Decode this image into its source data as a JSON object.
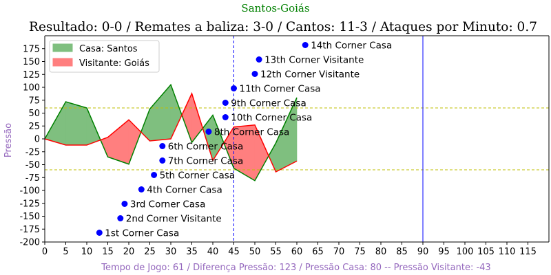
{
  "chart_data": {
    "type": "area",
    "title": "Santos-Goiás",
    "subtitle": "Resultado: 0-0 / Remates a baliza: 3-0 / Cantos: 11-3 / Ataques por Minuto: 0.7",
    "xlabel": "Tempo de Jogo: 61 / Diferença Pressão: 123 / Pressão Casa: 80 -- Pressão Visitante: -43",
    "ylabel": "Pressão",
    "xlim": [
      0,
      120
    ],
    "ylim": [
      -200,
      200
    ],
    "x_ticks": [
      0,
      5,
      10,
      15,
      20,
      25,
      30,
      35,
      40,
      45,
      50,
      55,
      60,
      65,
      70,
      75,
      80,
      85,
      90,
      95,
      100,
      105,
      110,
      115
    ],
    "y_ticks": [
      -200,
      -175,
      -150,
      -125,
      -100,
      -75,
      -50,
      -25,
      0,
      25,
      50,
      75,
      100,
      125,
      150,
      175
    ],
    "legend": {
      "position": "top-left",
      "entries": [
        "Casa: Santos",
        "Visitante: Goiás"
      ]
    },
    "series": [
      {
        "name": "Casa: Santos",
        "color": "#008000",
        "fill": "#7fbf7f",
        "x": [
          0,
          5,
          10,
          15,
          20,
          25,
          30,
          35,
          40,
          45,
          50,
          55,
          60
        ],
        "values": [
          0,
          72,
          60,
          -35,
          -49,
          58,
          105,
          -7,
          46,
          -57,
          -81,
          -8,
          80
        ]
      },
      {
        "name": "Visitante: Goiás",
        "color": "#ff0000",
        "fill": "#ff7f7f",
        "x": [
          0,
          5,
          10,
          15,
          20,
          25,
          30,
          35,
          40,
          45,
          50,
          55,
          60
        ],
        "values": [
          0,
          -12,
          -12,
          3,
          37,
          -4,
          0,
          88,
          -42,
          23,
          27,
          -64,
          -43
        ]
      }
    ],
    "reference_lines": {
      "horizontal": [
        60,
        -60
      ],
      "horizontal_color": "#bfbf00",
      "vertical": [
        45,
        90
      ],
      "vertical_color": "#0000ff"
    },
    "events": [
      {
        "x": 13,
        "y": -182,
        "label": "1st Corner Casa"
      },
      {
        "x": 18,
        "y": -154,
        "label": "2nd Corner Visitante"
      },
      {
        "x": 19,
        "y": -126,
        "label": "3rd Corner Casa"
      },
      {
        "x": 23,
        "y": -98,
        "label": "4th Corner Casa"
      },
      {
        "x": 26,
        "y": -70,
        "label": "5th Corner Casa"
      },
      {
        "x": 28,
        "y": -14,
        "label": "6th Corner Casa"
      },
      {
        "x": 28,
        "y": -42,
        "label": "7th Corner Casa"
      },
      {
        "x": 39,
        "y": 14,
        "label": "8th Corner Casa"
      },
      {
        "x": 43,
        "y": 70,
        "label": "9th Corner Casa"
      },
      {
        "x": 43,
        "y": 42,
        "label": "10th Corner Casa"
      },
      {
        "x": 45,
        "y": 98,
        "label": "11th Corner Casa"
      },
      {
        "x": 50,
        "y": 126,
        "label": "12th Corner Visitante"
      },
      {
        "x": 51,
        "y": 154,
        "label": "13th Corner Visitante"
      },
      {
        "x": 62,
        "y": 182,
        "label": "14th Corner Casa"
      }
    ],
    "event_color": "#0000ff",
    "title_color": "#008000",
    "subtitle_color": "#000000",
    "xlabel_color": "#9467bd",
    "ylabel_color": "#9467bd"
  }
}
